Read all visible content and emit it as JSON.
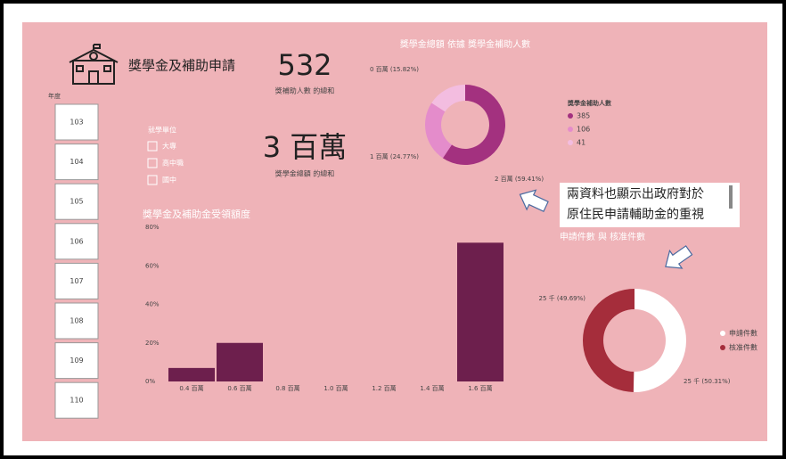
{
  "header": {
    "title": "獎學金及補助申請"
  },
  "kpis": [
    {
      "value": 532,
      "label": "獎補助人數 的總和"
    },
    {
      "value": "3 百萬",
      "label": "獎學金總額 的總和"
    }
  ],
  "year_slicer": {
    "title": "年度",
    "items": [
      "103",
      "104",
      "105",
      "106",
      "107",
      "108",
      "109",
      "110"
    ]
  },
  "unit_slicer": {
    "title": "就學單位",
    "items": [
      "大專",
      "高中職",
      "國中"
    ]
  },
  "callout": {
    "lines": [
      "兩資料也顯示出政府對於",
      "原住民申請輔助金的重視"
    ]
  },
  "chart_data": [
    {
      "type": "donut",
      "title": "獎學金總額 依據 獎學金補助人數",
      "legend_title": "獎學金補助人數",
      "categories": [
        "385",
        "106",
        "41"
      ],
      "values": [
        59.41,
        24.77,
        15.82
      ],
      "value_labels": [
        "2 百萬 (59.41%)",
        "1 百萬 (24.77%)",
        "0 百萬 (15.82%)"
      ],
      "colors": [
        "#a3317f",
        "#e48ccb",
        "#f3bde0"
      ]
    },
    {
      "type": "bar",
      "title": "獎學金及補助金受領額度",
      "categories": [
        "0.4 百萬",
        "0.6 百萬",
        "0.8 百萬",
        "1.0 百萬",
        "1.2 百萬",
        "1.4 百萬",
        "1.6 百萬"
      ],
      "values": [
        7,
        20,
        0,
        0,
        0,
        0,
        72
      ],
      "color": "#6d1f4d",
      "ylim": [
        0,
        80
      ],
      "yticks": [
        {
          "value": 0,
          "label": "0%"
        },
        {
          "value": 20,
          "label": "20%"
        },
        {
          "value": 40,
          "label": "40%"
        },
        {
          "value": 60,
          "label": "60%"
        },
        {
          "value": 80,
          "label": "80%"
        }
      ]
    },
    {
      "type": "donut",
      "title": "申請件數 與 核准件數",
      "categories": [
        "申請件數",
        "核准件數"
      ],
      "values": [
        50.31,
        49.69
      ],
      "value_labels": [
        "25 千 (50.31%)",
        "25 千 (49.69%)"
      ],
      "colors": [
        "#ffffff",
        "#a52d3b"
      ]
    }
  ]
}
